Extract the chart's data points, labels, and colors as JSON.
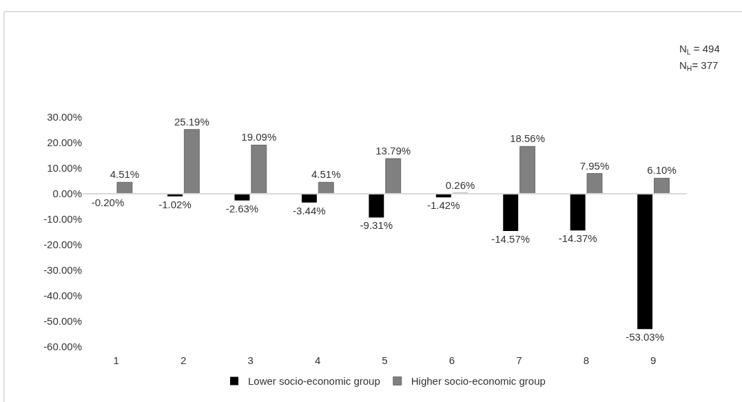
{
  "chart_data": {
    "type": "bar",
    "categories": [
      "1",
      "2",
      "3",
      "4",
      "5",
      "6",
      "7",
      "8",
      "9"
    ],
    "series": [
      {
        "name": "Lower socio-economic group",
        "color": "#000000",
        "values": [
          -0.2,
          -1.02,
          -2.63,
          -3.44,
          -9.31,
          -1.42,
          -14.57,
          -14.37,
          -53.03
        ],
        "value_labels": [
          "-0.20%",
          "-1.02%",
          "-2.63%",
          "-3.44%",
          "-9.31%",
          "-1.42%",
          "-14.57%",
          "-14.37%",
          "-53.03%"
        ]
      },
      {
        "name": "Higher socio-economic group",
        "color": "#808080",
        "values": [
          4.51,
          25.19,
          19.09,
          4.51,
          13.79,
          0.26,
          18.56,
          7.95,
          6.1
        ],
        "value_labels": [
          "4.51%",
          "25.19%",
          "19.09%",
          "4.51%",
          "13.79%",
          "0.26%",
          "18.56%",
          "7.95%",
          "6.10%"
        ]
      }
    ],
    "ylim": [
      -60,
      30
    ],
    "yticks": [
      {
        "value": 30,
        "label": "30.00%"
      },
      {
        "value": 20,
        "label": "20.00%"
      },
      {
        "value": 10,
        "label": "10.00%"
      },
      {
        "value": 0,
        "label": "0.00%"
      },
      {
        "value": -10,
        "label": "-10.00%"
      },
      {
        "value": -20,
        "label": "-20.00%"
      },
      {
        "value": -30,
        "label": "-30.00%"
      },
      {
        "value": -40,
        "label": "-40.00%"
      },
      {
        "value": -50,
        "label": "-50.00%"
      },
      {
        "value": -60,
        "label": "-60.00%"
      }
    ],
    "annotations": [
      "N$_{L}$ = 494",
      "N$_{H}$= 377"
    ],
    "legend": "bottom"
  }
}
